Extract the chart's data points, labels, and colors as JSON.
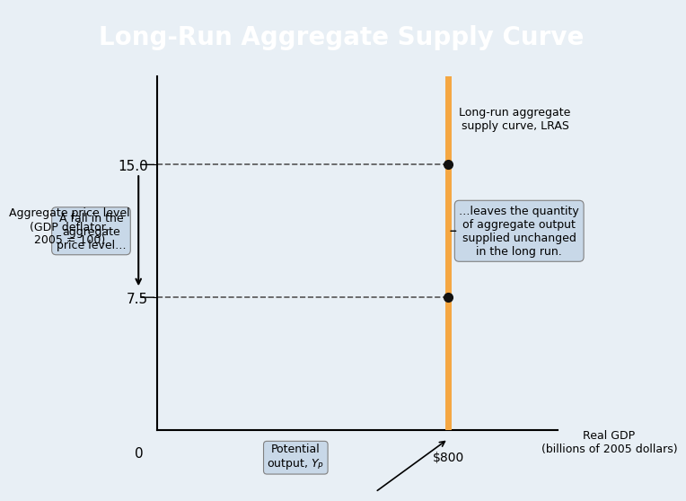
{
  "title": "Long-Run Aggregate Supply Curve",
  "title_bg_color": "#2a6b8a",
  "title_font_color": "#ffffff",
  "chart_bg_color": "#e8eff5",
  "ylabel": "Aggregate price level\n(GDP deflator,\n2005 = 100)",
  "xlabel_main": "Real GDP\n(billions of 2005 dollars)",
  "xlabel_potential": "Potential\noutput, $Y_P$",
  "x_potential": 800,
  "y_high": 15.0,
  "y_low": 7.5,
  "xlim": [
    0,
    1100
  ],
  "ylim": [
    0,
    20
  ],
  "lras_color": "#f5a742",
  "lras_label": "Long-run aggregate\nsupply curve, LRAS",
  "dashed_color": "#555555",
  "dot_color": "#111111",
  "annotation_right_text": "…leaves the quantity\nof aggregate output\nsupplied unchanged\nin the long run.",
  "annotation_left_text": "A fall in the\naggregate\nprice level…",
  "annotation_bg": "#c8d8e8",
  "x800_label": "$800",
  "origin_label": "0",
  "tick_high": 15.0,
  "tick_low": 7.5
}
